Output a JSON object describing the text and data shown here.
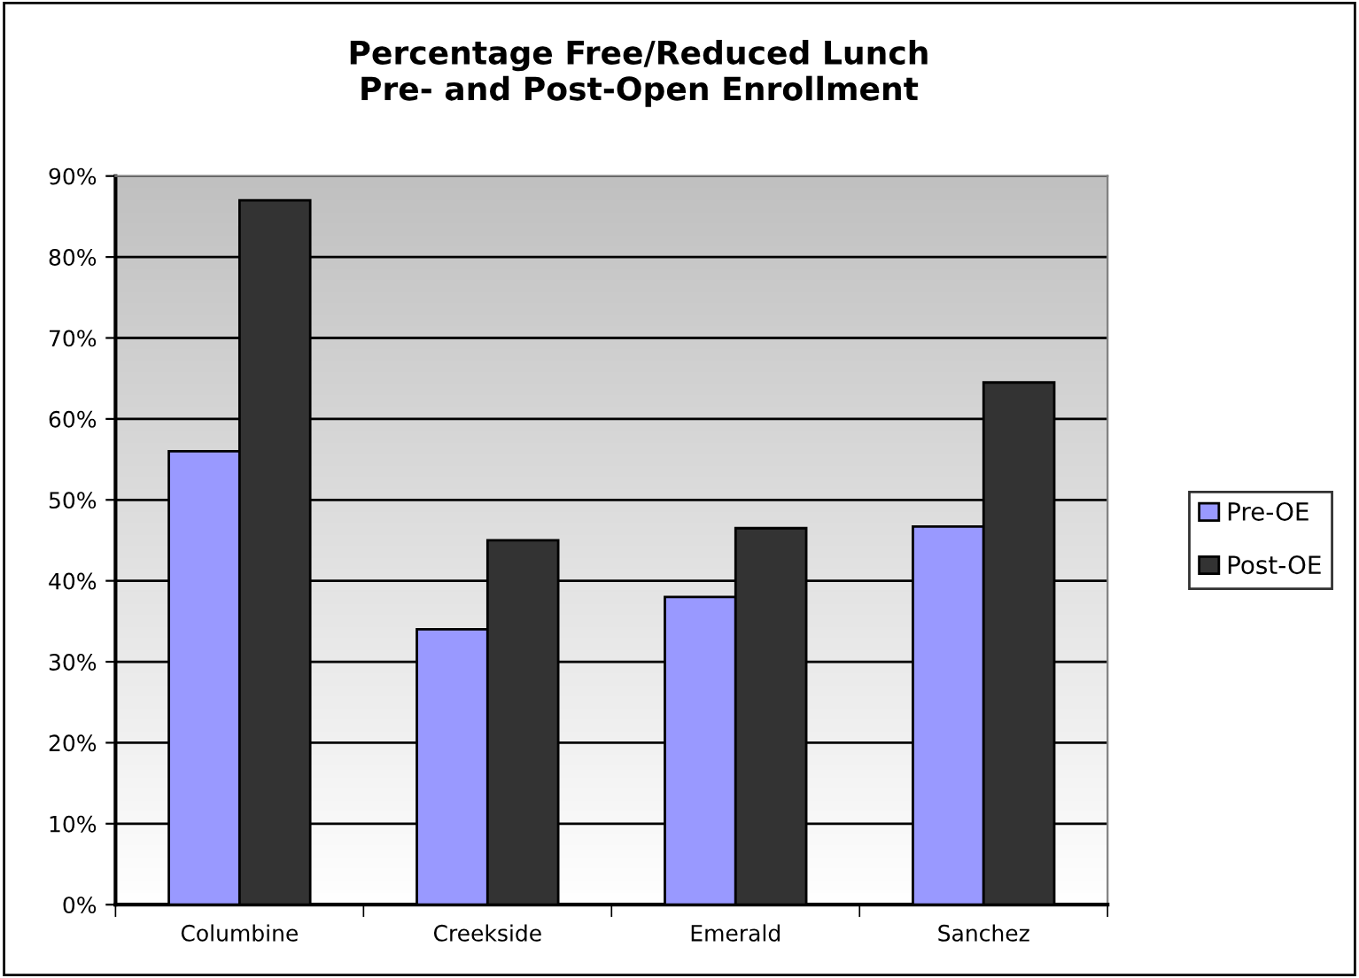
{
  "chart_data": {
    "type": "bar",
    "title": "Percentage Free/Reduced Lunch\nPre- and Post-Open Enrollment",
    "categories": [
      "Columbine",
      "Creekside",
      "Emerald",
      "Sanchez"
    ],
    "series": [
      {
        "name": "Pre-OE",
        "color": "#9999ff",
        "values": [
          56,
          34,
          38,
          46.7
        ]
      },
      {
        "name": "Post-OE",
        "color": "#333333",
        "values": [
          87,
          45,
          46.5,
          64.5
        ]
      }
    ],
    "ylim": [
      0,
      90
    ],
    "yticks": [
      {
        "value": 0,
        "label": "0%"
      },
      {
        "value": 10,
        "label": "10%"
      },
      {
        "value": 20,
        "label": "20%"
      },
      {
        "value": 30,
        "label": "30%"
      },
      {
        "value": 40,
        "label": "40%"
      },
      {
        "value": 50,
        "label": "50%"
      },
      {
        "value": 60,
        "label": "60%"
      },
      {
        "value": 70,
        "label": "70%"
      },
      {
        "value": 80,
        "label": "80%"
      },
      {
        "value": 90,
        "label": "90%"
      }
    ],
    "grid": "y",
    "legend": "right"
  }
}
